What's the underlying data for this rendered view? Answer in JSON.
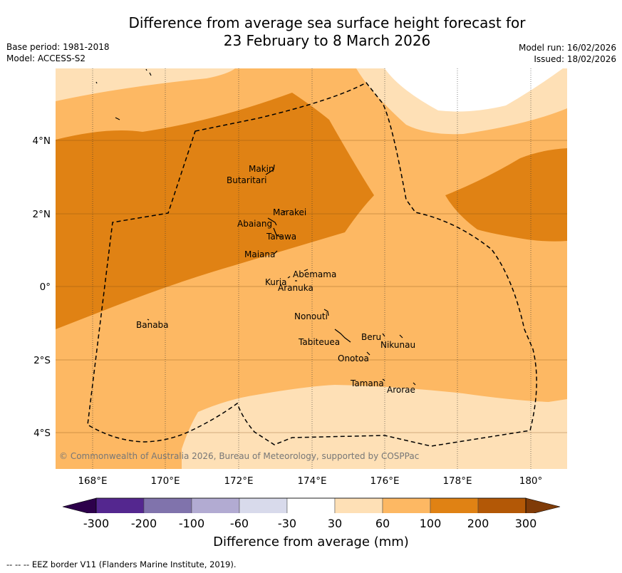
{
  "title": {
    "line1": "Difference from average sea surface height forecast for",
    "line2": "23 February to 8 March 2026"
  },
  "meta": {
    "base_period": "Base period: 1981-2018",
    "model": "Model: ACCESS-S2",
    "model_run": "Model run: 16/02/2026",
    "issued": "Issued: 18/02/2026"
  },
  "axes": {
    "x_ticks": [
      "168°E",
      "170°E",
      "172°E",
      "174°E",
      "176°E",
      "178°E",
      "180°"
    ],
    "y_ticks": [
      "4°N",
      "2°N",
      "0°",
      "2°S",
      "4°S"
    ]
  },
  "places": [
    "Makin",
    "Butaritari",
    "Marakei",
    "Abaiang",
    "Tarawa",
    "Maiana",
    "Abemama",
    "Kuria",
    "Aranuka",
    "Banaba",
    "Nonouti",
    "Beru",
    "Nikunau",
    "Tabiteuea",
    "Onotoa",
    "Tamana",
    "Arorae"
  ],
  "copyright": "© Commonwealth of Australia 2026, Bureau of Meteorology, supported by COSPPac",
  "colorbar": {
    "labels": [
      "-300",
      "-200",
      "-100",
      "-60",
      "-30",
      "30",
      "60",
      "100",
      "200",
      "300"
    ],
    "colors": [
      "#54278f",
      "#8073ac",
      "#b2abd2",
      "#d8daeb",
      "#ffffff",
      "#fee0b6",
      "#fdb863",
      "#e08214",
      "#b35806"
    ],
    "under_color": "#2d004b",
    "over_color": "#7f3b08",
    "title": "Difference from average (mm)"
  },
  "footer": "--  --  -- EEZ border V11 (Flanders Marine Institute, 2019)."
}
